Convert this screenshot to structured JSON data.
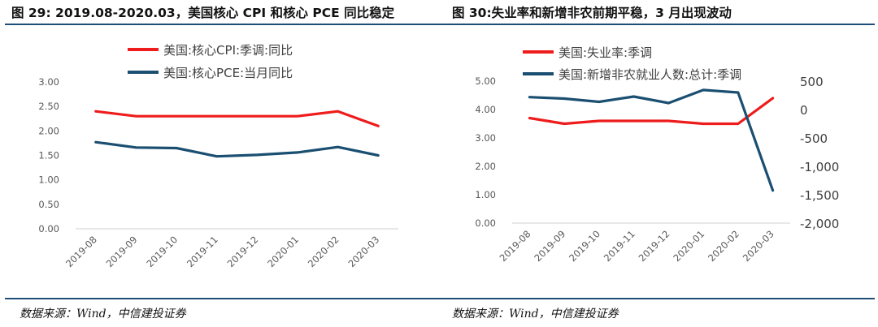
{
  "left_title": "图 29: 2019.08-2020.03，美国核心 CPI 和核心 PCE 同比稳定",
  "right_title": "图 30:失业率和新增非农前期平稳，3 月出现波动",
  "left_source": "数据来源：Wind，中信建投证券",
  "right_source": "数据来源：Wind，中信建投证券",
  "chart_data": [
    {
      "type": "line",
      "categories": [
        "2019-08",
        "2019-09",
        "2019-10",
        "2019-11",
        "2019-12",
        "2020-01",
        "2020-02",
        "2020-03"
      ],
      "ylim": [
        0,
        3
      ],
      "yticks": [
        "0.00",
        "0.50",
        "1.00",
        "1.50",
        "2.00",
        "2.50",
        "3.00"
      ],
      "grid": false,
      "legend_position": "top",
      "series": [
        {
          "name": "美国:核心CPI:季调:同比",
          "color": "#ee1c1c",
          "axis": "left",
          "values": [
            2.4,
            2.3,
            2.3,
            2.3,
            2.3,
            2.3,
            2.4,
            2.1
          ]
        },
        {
          "name": "美国:核心PCE:当月同比",
          "color": "#1b4f72",
          "axis": "left",
          "values": [
            1.77,
            1.66,
            1.65,
            1.48,
            1.51,
            1.56,
            1.67,
            1.5
          ]
        }
      ]
    },
    {
      "type": "line",
      "categories": [
        "2019-08",
        "2019-09",
        "2019-10",
        "2019-11",
        "2019-12",
        "2020-01",
        "2020-02",
        "2020-03"
      ],
      "ylim": [
        0,
        5
      ],
      "yticks": [
        "0.00",
        "1.00",
        "2.00",
        "3.00",
        "4.00",
        "5.00"
      ],
      "y2lim": [
        -2000,
        500
      ],
      "y2ticks": [
        "-2,000",
        "-1,500",
        "-1,000",
        "-500",
        "0",
        "500"
      ],
      "grid": false,
      "legend_position": "top",
      "series": [
        {
          "name": "美国:失业率:季调",
          "color": "#ee1c1c",
          "axis": "left",
          "values": [
            3.7,
            3.5,
            3.6,
            3.6,
            3.6,
            3.5,
            3.5,
            4.4
          ]
        },
        {
          "name": "美国:新增非农就业人数:总计:季调",
          "color": "#1b4f72",
          "axis": "right",
          "values": [
            219,
            193,
            136,
            228,
            115,
            344,
            300,
            -1424
          ]
        }
      ]
    }
  ]
}
